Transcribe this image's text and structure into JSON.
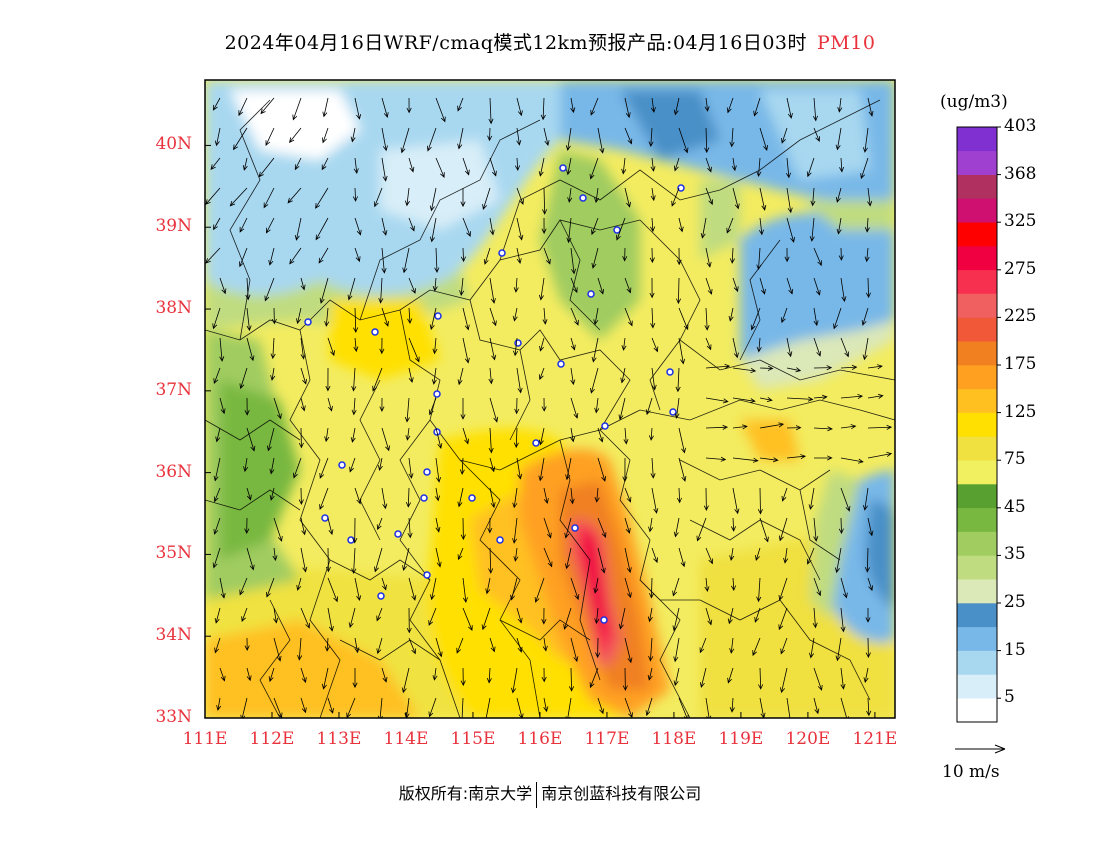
{
  "title": {
    "main": "2024年04月16日WRF/cmaq模式12km预报产品:04月16日03时",
    "variable": "PM10"
  },
  "map": {
    "lon_ticks": [
      "111E",
      "112E",
      "113E",
      "114E",
      "115E",
      "116E",
      "117E",
      "118E",
      "119E",
      "120E",
      "121E"
    ],
    "lat_ticks": [
      "33N",
      "34N",
      "35N",
      "36N",
      "37N",
      "38N",
      "39N",
      "40N"
    ],
    "lon_range": [
      111,
      121.3
    ],
    "lat_range": [
      33,
      40.8
    ]
  },
  "colorbar": {
    "unit": "(ug/m3)",
    "colors": [
      "#ffffff",
      "#d8eef8",
      "#a8d8f0",
      "#78b8e8",
      "#4a90c8",
      "#dbe8b8",
      "#c0dc80",
      "#a0cc60",
      "#78b840",
      "#58a030",
      "#f0f060",
      "#f0e040",
      "#ffe000",
      "#ffc020",
      "#ffa020",
      "#f08020",
      "#f05838",
      "#f06060",
      "#f83050",
      "#f00040",
      "#ff0000",
      "#d01070",
      "#b03060",
      "#a040d0",
      "#8030d0"
    ],
    "labels": [
      "5",
      "15",
      "25",
      "35",
      "45",
      "75",
      "125",
      "175",
      "225",
      "275",
      "325",
      "368",
      "403"
    ]
  },
  "wind_reference": "10 m/s",
  "footer": {
    "copyright": "版权所有:南京大学",
    "company": "南京创蓝科技有限公司"
  },
  "colors": {
    "label_red": "#e8323c"
  }
}
